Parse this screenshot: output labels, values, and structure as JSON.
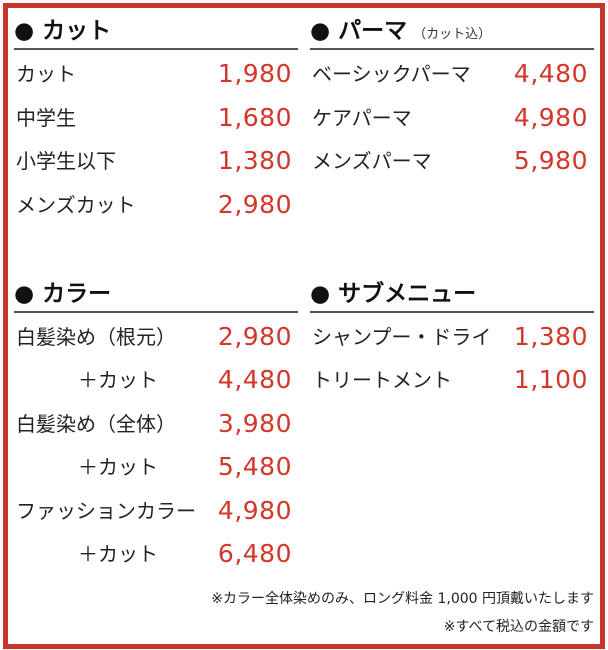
{
  "colors": {
    "border": "#c8372c",
    "price": "#d2372c"
  },
  "sections": [
    {
      "title": "● カット",
      "subtitle": "",
      "items": [
        {
          "name": "カット",
          "price": "1,980"
        },
        {
          "name": "中学生",
          "price": "1,680"
        },
        {
          "name": "小学生以下",
          "price": "1,380"
        },
        {
          "name": "メンズカット",
          "price": "2,980"
        }
      ]
    },
    {
      "title": "● パーマ",
      "subtitle": "（カット込）",
      "items": [
        {
          "name": "ベーシックパーマ",
          "price": "4,480"
        },
        {
          "name": "ケアパーマ",
          "price": "4,980"
        },
        {
          "name": "メンズパーマ",
          "price": "5,980"
        }
      ]
    },
    {
      "title": "● カラー",
      "subtitle": "",
      "items": [
        {
          "name": "白髪染め（根元）",
          "price": "2,980"
        },
        {
          "name": "＋カット",
          "price": "4,480"
        },
        {
          "name": "白髪染め（全体）",
          "price": "3,980"
        },
        {
          "name": "＋カット",
          "price": "5,480"
        },
        {
          "name": "ファッションカラー",
          "price": "4,980"
        },
        {
          "name": "＋カット",
          "price": "6,480"
        }
      ]
    },
    {
      "title": "● サブメニュー",
      "subtitle": "",
      "items": [
        {
          "name": "シャンプー・ドライ",
          "price": "1,380"
        },
        {
          "name": "トリートメント",
          "price": "1,100"
        }
      ]
    }
  ],
  "notes": [
    "※カラー全体染めのみ、ロング料金 1,000 円頂戴いたします",
    "※すべて税込の金額です"
  ]
}
